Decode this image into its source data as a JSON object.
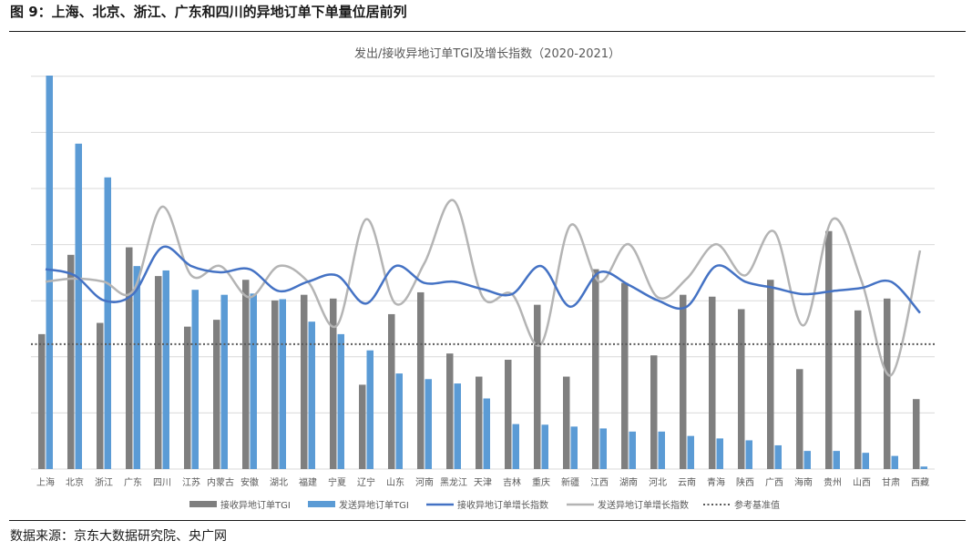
{
  "figure": {
    "title": "图 9：上海、北京、浙江、广东和四川的异地订单下单量位居前列",
    "source": "数据来源：京东大数据研究院、央广网"
  },
  "colors": {
    "receive_bar": "#7f7f7f",
    "send_bar": "#5b9bd5",
    "receive_line": "#4472c4",
    "send_line": "#b4b4b4",
    "baseline": "#595959",
    "grid": "#d9d9d9",
    "text": "#595959"
  },
  "chart_data": {
    "type": "bar",
    "title": "发出/接收异地订单TGI及增长指数（2020-2021）",
    "categories": [
      "上海",
      "北京",
      "浙江",
      "广东",
      "四川",
      "江苏",
      "内蒙古",
      "安徽",
      "湖北",
      "福建",
      "宁夏",
      "辽宁",
      "山东",
      "河南",
      "黑龙江",
      "天津",
      "吉林",
      "重庆",
      "新疆",
      "江西",
      "湖南",
      "河北",
      "云南",
      "青海",
      "陕西",
      "广西",
      "海南",
      "贵州",
      "山西",
      "甘肃",
      "西藏"
    ],
    "ylim": [
      0,
      6.3
    ],
    "grid": true,
    "legend_position": "bottom",
    "series": [
      {
        "name": "接收异地订单TGI",
        "kind": "bar",
        "values": [
          2.16,
          3.43,
          2.34,
          3.55,
          3.09,
          2.28,
          2.39,
          3.03,
          2.7,
          2.79,
          2.73,
          1.35,
          2.48,
          2.83,
          1.85,
          1.48,
          1.75,
          2.63,
          1.48,
          3.2,
          2.98,
          1.82,
          2.79,
          2.76,
          2.56,
          3.03,
          1.6,
          3.81,
          2.54,
          2.73,
          1.12
        ]
      },
      {
        "name": "发送异地订单TGI",
        "kind": "bar",
        "values": [
          6.3,
          5.21,
          4.67,
          3.25,
          3.18,
          2.87,
          2.79,
          2.81,
          2.72,
          2.36,
          2.16,
          1.9,
          1.53,
          1.44,
          1.37,
          1.13,
          0.72,
          0.71,
          0.68,
          0.65,
          0.6,
          0.6,
          0.53,
          0.49,
          0.46,
          0.38,
          0.29,
          0.29,
          0.26,
          0.21,
          0.04
        ]
      },
      {
        "name": "接收异地订单增长指数",
        "kind": "line",
        "values": [
          3.2,
          3.1,
          2.7,
          2.8,
          3.55,
          3.25,
          3.15,
          3.2,
          2.85,
          3.0,
          3.1,
          2.65,
          3.25,
          2.98,
          3.0,
          2.88,
          2.8,
          3.25,
          2.6,
          3.15,
          2.95,
          2.7,
          2.6,
          3.25,
          3.0,
          2.9,
          2.8,
          2.85,
          2.9,
          3.0,
          2.5
        ]
      },
      {
        "name": "发送异地订单增长指数",
        "kind": "line",
        "values": [
          3.0,
          3.05,
          3.0,
          2.85,
          4.2,
          3.1,
          3.25,
          2.75,
          3.25,
          3.0,
          2.3,
          4.0,
          2.65,
          3.3,
          4.3,
          2.75,
          2.8,
          2.0,
          3.9,
          3.0,
          3.6,
          2.75,
          3.05,
          3.6,
          3.1,
          3.8,
          2.3,
          4.0,
          3.0,
          1.5,
          3.5
        ]
      },
      {
        "name": "参考基准值",
        "kind": "reference",
        "value": 2.0
      }
    ]
  }
}
